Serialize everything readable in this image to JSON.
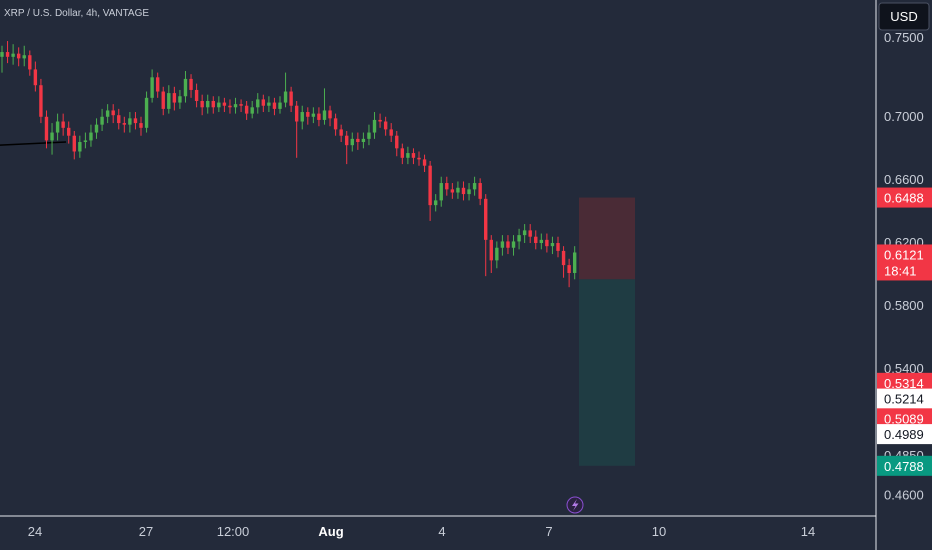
{
  "header": {
    "symbol_line": "XRP / U.S. Dollar, 4h, VANTAGE"
  },
  "currency_button": "USD",
  "chart_data": {
    "type": "candlestick",
    "ylim": [
      0.447,
      0.774
    ],
    "y_ticks": [
      "0.7500",
      "0.7000",
      "0.6600",
      "0.6200",
      "0.5800",
      "0.5400",
      "0.4850",
      "0.4600"
    ],
    "x_ticks": [
      "24",
      "27",
      "12:00",
      "Aug",
      "4",
      "7",
      "10",
      "14"
    ],
    "price_labels": [
      {
        "text": "0.6488",
        "value": 0.6488,
        "kind": "red"
      },
      {
        "text": "0.6121",
        "sub": "18:41",
        "value": 0.6121,
        "kind": "red"
      },
      {
        "text": "0.5314",
        "value": 0.5314,
        "kind": "red"
      },
      {
        "text": "0.5214",
        "value": 0.5214,
        "kind": "white"
      },
      {
        "text": "0.5089",
        "value": 0.5089,
        "kind": "red"
      },
      {
        "text": "0.4989",
        "value": 0.4989,
        "kind": "white"
      },
      {
        "text": "0.4788",
        "value": 0.4788,
        "kind": "green"
      }
    ],
    "position": {
      "entry": 0.597,
      "stop": 0.6488,
      "target": 0.4788
    },
    "trend_line": {
      "from": 0.682,
      "to": 0.684
    },
    "candles": [
      [
        0.738,
        0.741,
        0.745,
        0.728
      ],
      [
        0.741,
        0.738,
        0.748,
        0.734
      ],
      [
        0.738,
        0.74,
        0.746,
        0.733
      ],
      [
        0.74,
        0.737,
        0.744,
        0.732
      ],
      [
        0.737,
        0.739,
        0.745,
        0.732
      ],
      [
        0.739,
        0.73,
        0.742,
        0.726
      ],
      [
        0.73,
        0.72,
        0.735,
        0.716
      ],
      [
        0.72,
        0.7,
        0.724,
        0.696
      ],
      [
        0.7,
        0.685,
        0.704,
        0.68
      ],
      [
        0.685,
        0.69,
        0.696,
        0.676
      ],
      [
        0.69,
        0.697,
        0.702,
        0.685
      ],
      [
        0.697,
        0.693,
        0.702,
        0.688
      ],
      [
        0.693,
        0.688,
        0.697,
        0.683
      ],
      [
        0.688,
        0.678,
        0.691,
        0.673
      ],
      [
        0.678,
        0.684,
        0.688,
        0.674
      ],
      [
        0.684,
        0.685,
        0.69,
        0.68
      ],
      [
        0.685,
        0.69,
        0.695,
        0.681
      ],
      [
        0.69,
        0.695,
        0.699,
        0.686
      ],
      [
        0.695,
        0.7,
        0.705,
        0.691
      ],
      [
        0.7,
        0.704,
        0.708,
        0.696
      ],
      [
        0.704,
        0.701,
        0.708,
        0.696
      ],
      [
        0.701,
        0.696,
        0.705,
        0.692
      ],
      [
        0.696,
        0.695,
        0.7,
        0.69
      ],
      [
        0.695,
        0.699,
        0.703,
        0.69
      ],
      [
        0.699,
        0.696,
        0.703,
        0.692
      ],
      [
        0.696,
        0.693,
        0.7,
        0.688
      ],
      [
        0.693,
        0.712,
        0.716,
        0.69
      ],
      [
        0.712,
        0.725,
        0.73,
        0.709
      ],
      [
        0.725,
        0.716,
        0.728,
        0.712
      ],
      [
        0.716,
        0.705,
        0.719,
        0.701
      ],
      [
        0.705,
        0.715,
        0.72,
        0.702
      ],
      [
        0.715,
        0.709,
        0.719,
        0.704
      ],
      [
        0.709,
        0.713,
        0.717,
        0.705
      ],
      [
        0.713,
        0.724,
        0.729,
        0.709
      ],
      [
        0.724,
        0.717,
        0.727,
        0.712
      ],
      [
        0.717,
        0.71,
        0.721,
        0.706
      ],
      [
        0.71,
        0.706,
        0.714,
        0.701
      ],
      [
        0.706,
        0.71,
        0.714,
        0.702
      ],
      [
        0.71,
        0.706,
        0.713,
        0.702
      ],
      [
        0.706,
        0.709,
        0.713,
        0.703
      ],
      [
        0.709,
        0.707,
        0.712,
        0.703
      ],
      [
        0.707,
        0.706,
        0.711,
        0.702
      ],
      [
        0.706,
        0.708,
        0.712,
        0.702
      ],
      [
        0.708,
        0.707,
        0.711,
        0.703
      ],
      [
        0.707,
        0.702,
        0.71,
        0.698
      ],
      [
        0.702,
        0.706,
        0.71,
        0.699
      ],
      [
        0.706,
        0.711,
        0.715,
        0.702
      ],
      [
        0.711,
        0.707,
        0.714,
        0.703
      ],
      [
        0.707,
        0.709,
        0.713,
        0.703
      ],
      [
        0.709,
        0.705,
        0.712,
        0.701
      ],
      [
        0.705,
        0.709,
        0.713,
        0.702
      ],
      [
        0.709,
        0.716,
        0.728,
        0.706
      ],
      [
        0.716,
        0.707,
        0.719,
        0.703
      ],
      [
        0.707,
        0.697,
        0.71,
        0.674
      ],
      [
        0.697,
        0.703,
        0.707,
        0.692
      ],
      [
        0.703,
        0.7,
        0.706,
        0.695
      ],
      [
        0.7,
        0.702,
        0.706,
        0.696
      ],
      [
        0.702,
        0.698,
        0.706,
        0.694
      ],
      [
        0.698,
        0.704,
        0.718,
        0.695
      ],
      [
        0.704,
        0.699,
        0.707,
        0.694
      ],
      [
        0.699,
        0.692,
        0.702,
        0.688
      ],
      [
        0.692,
        0.688,
        0.695,
        0.684
      ],
      [
        0.688,
        0.682,
        0.691,
        0.67
      ],
      [
        0.682,
        0.686,
        0.69,
        0.678
      ],
      [
        0.686,
        0.684,
        0.69,
        0.679
      ],
      [
        0.684,
        0.686,
        0.69,
        0.68
      ],
      [
        0.686,
        0.69,
        0.695,
        0.682
      ],
      [
        0.69,
        0.698,
        0.703,
        0.686
      ],
      [
        0.698,
        0.697,
        0.702,
        0.693
      ],
      [
        0.697,
        0.692,
        0.7,
        0.688
      ],
      [
        0.692,
        0.688,
        0.696,
        0.684
      ],
      [
        0.688,
        0.68,
        0.691,
        0.675
      ],
      [
        0.68,
        0.674,
        0.683,
        0.67
      ],
      [
        0.674,
        0.677,
        0.681,
        0.67
      ],
      [
        0.677,
        0.674,
        0.68,
        0.67
      ],
      [
        0.674,
        0.673,
        0.678,
        0.669
      ],
      [
        0.673,
        0.669,
        0.676,
        0.665
      ],
      [
        0.669,
        0.644,
        0.672,
        0.634
      ],
      [
        0.644,
        0.647,
        0.651,
        0.64
      ],
      [
        0.647,
        0.658,
        0.662,
        0.643
      ],
      [
        0.658,
        0.654,
        0.662,
        0.65
      ],
      [
        0.654,
        0.652,
        0.658,
        0.648
      ],
      [
        0.652,
        0.655,
        0.659,
        0.648
      ],
      [
        0.655,
        0.651,
        0.659,
        0.647
      ],
      [
        0.651,
        0.654,
        0.658,
        0.647
      ],
      [
        0.654,
        0.658,
        0.662,
        0.65
      ],
      [
        0.658,
        0.648,
        0.661,
        0.644
      ],
      [
        0.648,
        0.622,
        0.651,
        0.599
      ],
      [
        0.622,
        0.609,
        0.625,
        0.601
      ],
      [
        0.609,
        0.617,
        0.621,
        0.604
      ],
      [
        0.617,
        0.621,
        0.625,
        0.612
      ],
      [
        0.621,
        0.617,
        0.625,
        0.613
      ],
      [
        0.617,
        0.621,
        0.625,
        0.612
      ],
      [
        0.621,
        0.625,
        0.629,
        0.616
      ],
      [
        0.625,
        0.628,
        0.632,
        0.62
      ],
      [
        0.628,
        0.624,
        0.632,
        0.62
      ],
      [
        0.624,
        0.62,
        0.628,
        0.616
      ],
      [
        0.62,
        0.622,
        0.626,
        0.616
      ],
      [
        0.622,
        0.618,
        0.626,
        0.614
      ],
      [
        0.618,
        0.62,
        0.624,
        0.613
      ],
      [
        0.62,
        0.615,
        0.624,
        0.611
      ],
      [
        0.615,
        0.606,
        0.618,
        0.598
      ],
      [
        0.606,
        0.601,
        0.61,
        0.592
      ],
      [
        0.601,
        0.614,
        0.618,
        0.597
      ]
    ]
  }
}
